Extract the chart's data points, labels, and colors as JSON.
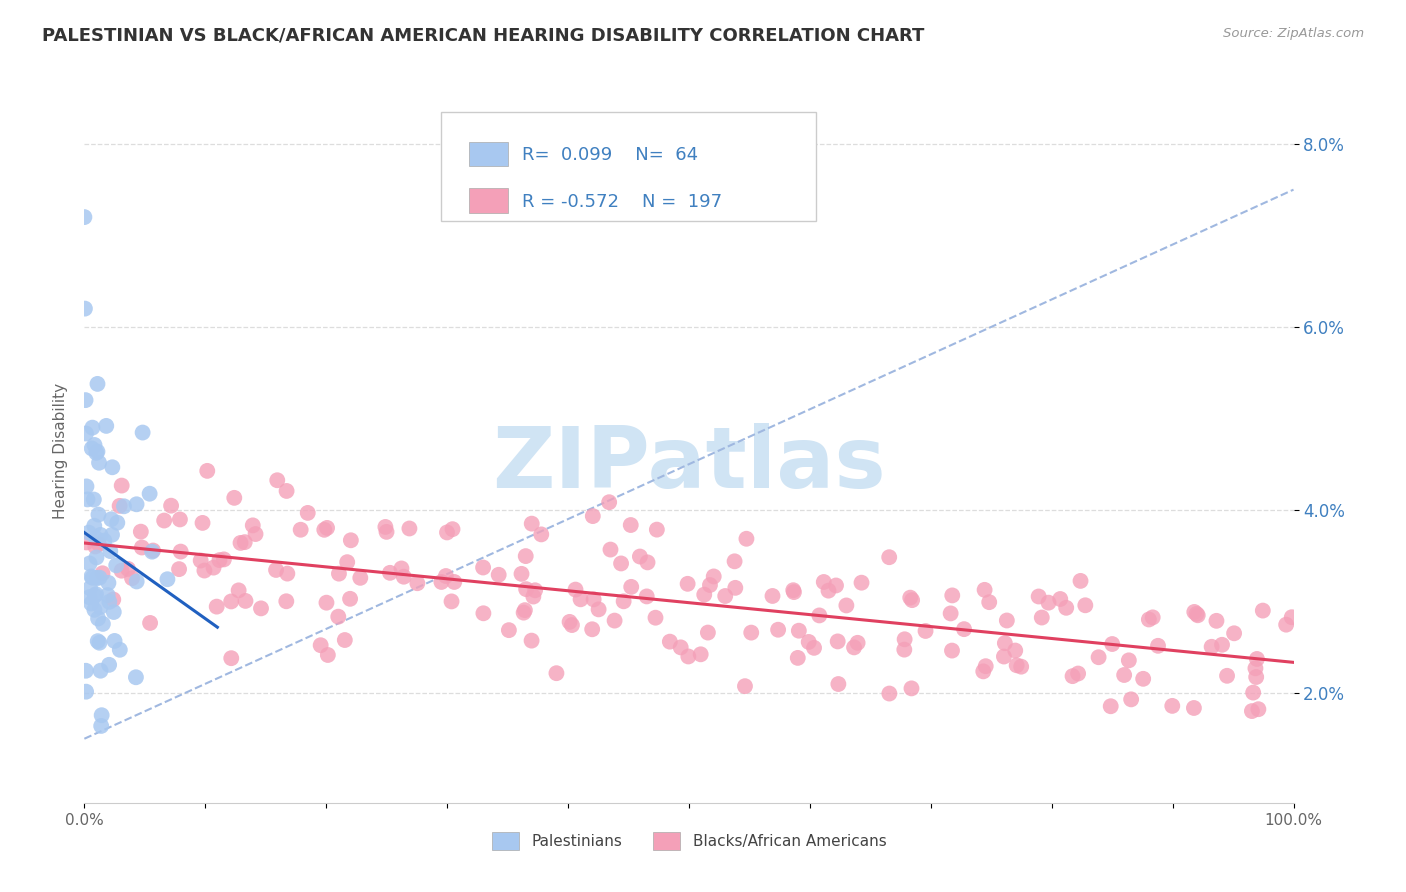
{
  "title": "PALESTINIAN VS BLACK/AFRICAN AMERICAN HEARING DISABILITY CORRELATION CHART",
  "source": "Source: ZipAtlas.com",
  "ylabel": "Hearing Disability",
  "xlim": [
    0,
    100
  ],
  "ylim": [
    0.8,
    8.5
  ],
  "yticks": [
    2.0,
    4.0,
    6.0,
    8.0
  ],
  "xticks": [
    0,
    10,
    20,
    30,
    40,
    50,
    60,
    70,
    80,
    90,
    100
  ],
  "xtick_labels_show": [
    "0.0%",
    "",
    "",
    "",
    "",
    "",
    "",
    "",
    "",
    "",
    "100.0%"
  ],
  "ytick_labels": [
    "2.0%",
    "4.0%",
    "6.0%",
    "8.0%"
  ],
  "blue_color": "#A8C8F0",
  "pink_color": "#F4A0B8",
  "blue_line_color": "#2060C0",
  "pink_line_color": "#E04060",
  "dashed_line_color": "#A0B8E0",
  "text_color": "#4080C0",
  "legend_text_color": "#4080C0",
  "watermark_color": "#D0E4F4",
  "title_fontsize": 13,
  "axis_label_fontsize": 11,
  "tick_fontsize": 11,
  "legend_fontsize": 13,
  "background_color": "#FFFFFF",
  "grid_color": "#DDDDDD"
}
